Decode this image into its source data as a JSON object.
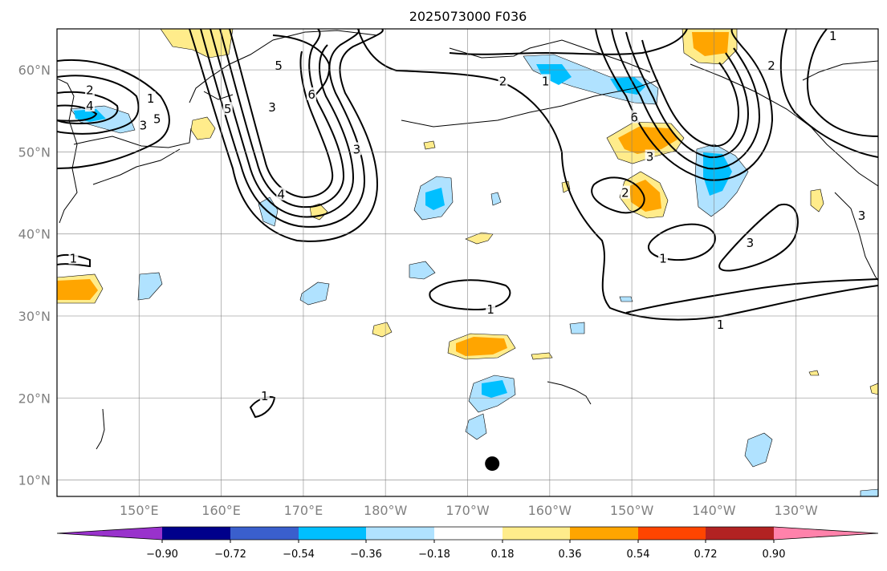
{
  "title": "2025073000 F036",
  "map": {
    "lat_labels": [
      "60°N",
      "50°N",
      "40°N",
      "30°N",
      "20°N",
      "10°N"
    ],
    "lat_values": [
      60,
      50,
      40,
      30,
      20,
      10
    ],
    "lon_labels": [
      "150°E",
      "160°E",
      "170°E",
      "180°W",
      "170°W",
      "160°W",
      "150°W",
      "140°W",
      "130°W"
    ],
    "lon_values": [
      150,
      160,
      170,
      180,
      190,
      200,
      210,
      220,
      230
    ],
    "extent": {
      "lon_min": 140,
      "lon_max": 240,
      "lat_min": 8,
      "lat_max": 65
    },
    "gridlines": true,
    "marker": {
      "name": "point marker",
      "lon": 193,
      "lat": 12
    }
  },
  "contour_labels": [
    {
      "text": "5",
      "lon": 167,
      "lat": 60.5
    },
    {
      "text": "6",
      "lon": 171,
      "lat": 57
    },
    {
      "text": "5",
      "lon": 152.2,
      "lat": 54
    },
    {
      "text": "2",
      "lon": 144,
      "lat": 57.5
    },
    {
      "text": "4",
      "lon": 144,
      "lat": 55.6
    },
    {
      "text": "1",
      "lon": 151.4,
      "lat": 56.5
    },
    {
      "text": "3",
      "lon": 150.5,
      "lat": 53.2
    },
    {
      "text": "5",
      "lon": 160.8,
      "lat": 55.2
    },
    {
      "text": "3",
      "lon": 166.2,
      "lat": 55.4
    },
    {
      "text": "4",
      "lon": 167.3,
      "lat": 44.8
    },
    {
      "text": "3",
      "lon": 176.5,
      "lat": 50.3
    },
    {
      "text": "2",
      "lon": 194.3,
      "lat": 58.6
    },
    {
      "text": "1",
      "lon": 199.5,
      "lat": 58.6
    },
    {
      "text": "6",
      "lon": 210.3,
      "lat": 54.2
    },
    {
      "text": "3",
      "lon": 212.2,
      "lat": 49.4
    },
    {
      "text": "2",
      "lon": 209.2,
      "lat": 45
    },
    {
      "text": "1",
      "lon": 213.8,
      "lat": 37
    },
    {
      "text": "3",
      "lon": 224.4,
      "lat": 38.9
    },
    {
      "text": "1",
      "lon": 220.8,
      "lat": 28.9
    },
    {
      "text": "2",
      "lon": 227,
      "lat": 60.5
    },
    {
      "text": "1",
      "lon": 234.5,
      "lat": 64.1
    },
    {
      "text": "3",
      "lon": 238,
      "lat": 42.2
    },
    {
      "text": "1",
      "lon": 142,
      "lat": 37
    },
    {
      "text": "1",
      "lon": 192.8,
      "lat": 30.8
    },
    {
      "text": "1",
      "lon": 165.3,
      "lat": 20.2
    }
  ],
  "colorbar": {
    "tick_labels": [
      "−0.90",
      "−0.72",
      "−0.54",
      "−0.36",
      "−0.18",
      "0.18",
      "0.36",
      "0.54",
      "0.72",
      "0.90"
    ],
    "colors": [
      "#9932cc",
      "#00008b",
      "#3a5fcd",
      "#00bfff",
      "#b0e2ff",
      "#ffffff",
      "#ffec8b",
      "#ffa500",
      "#ff4500",
      "#b22222",
      "#ff82ab"
    ]
  }
}
